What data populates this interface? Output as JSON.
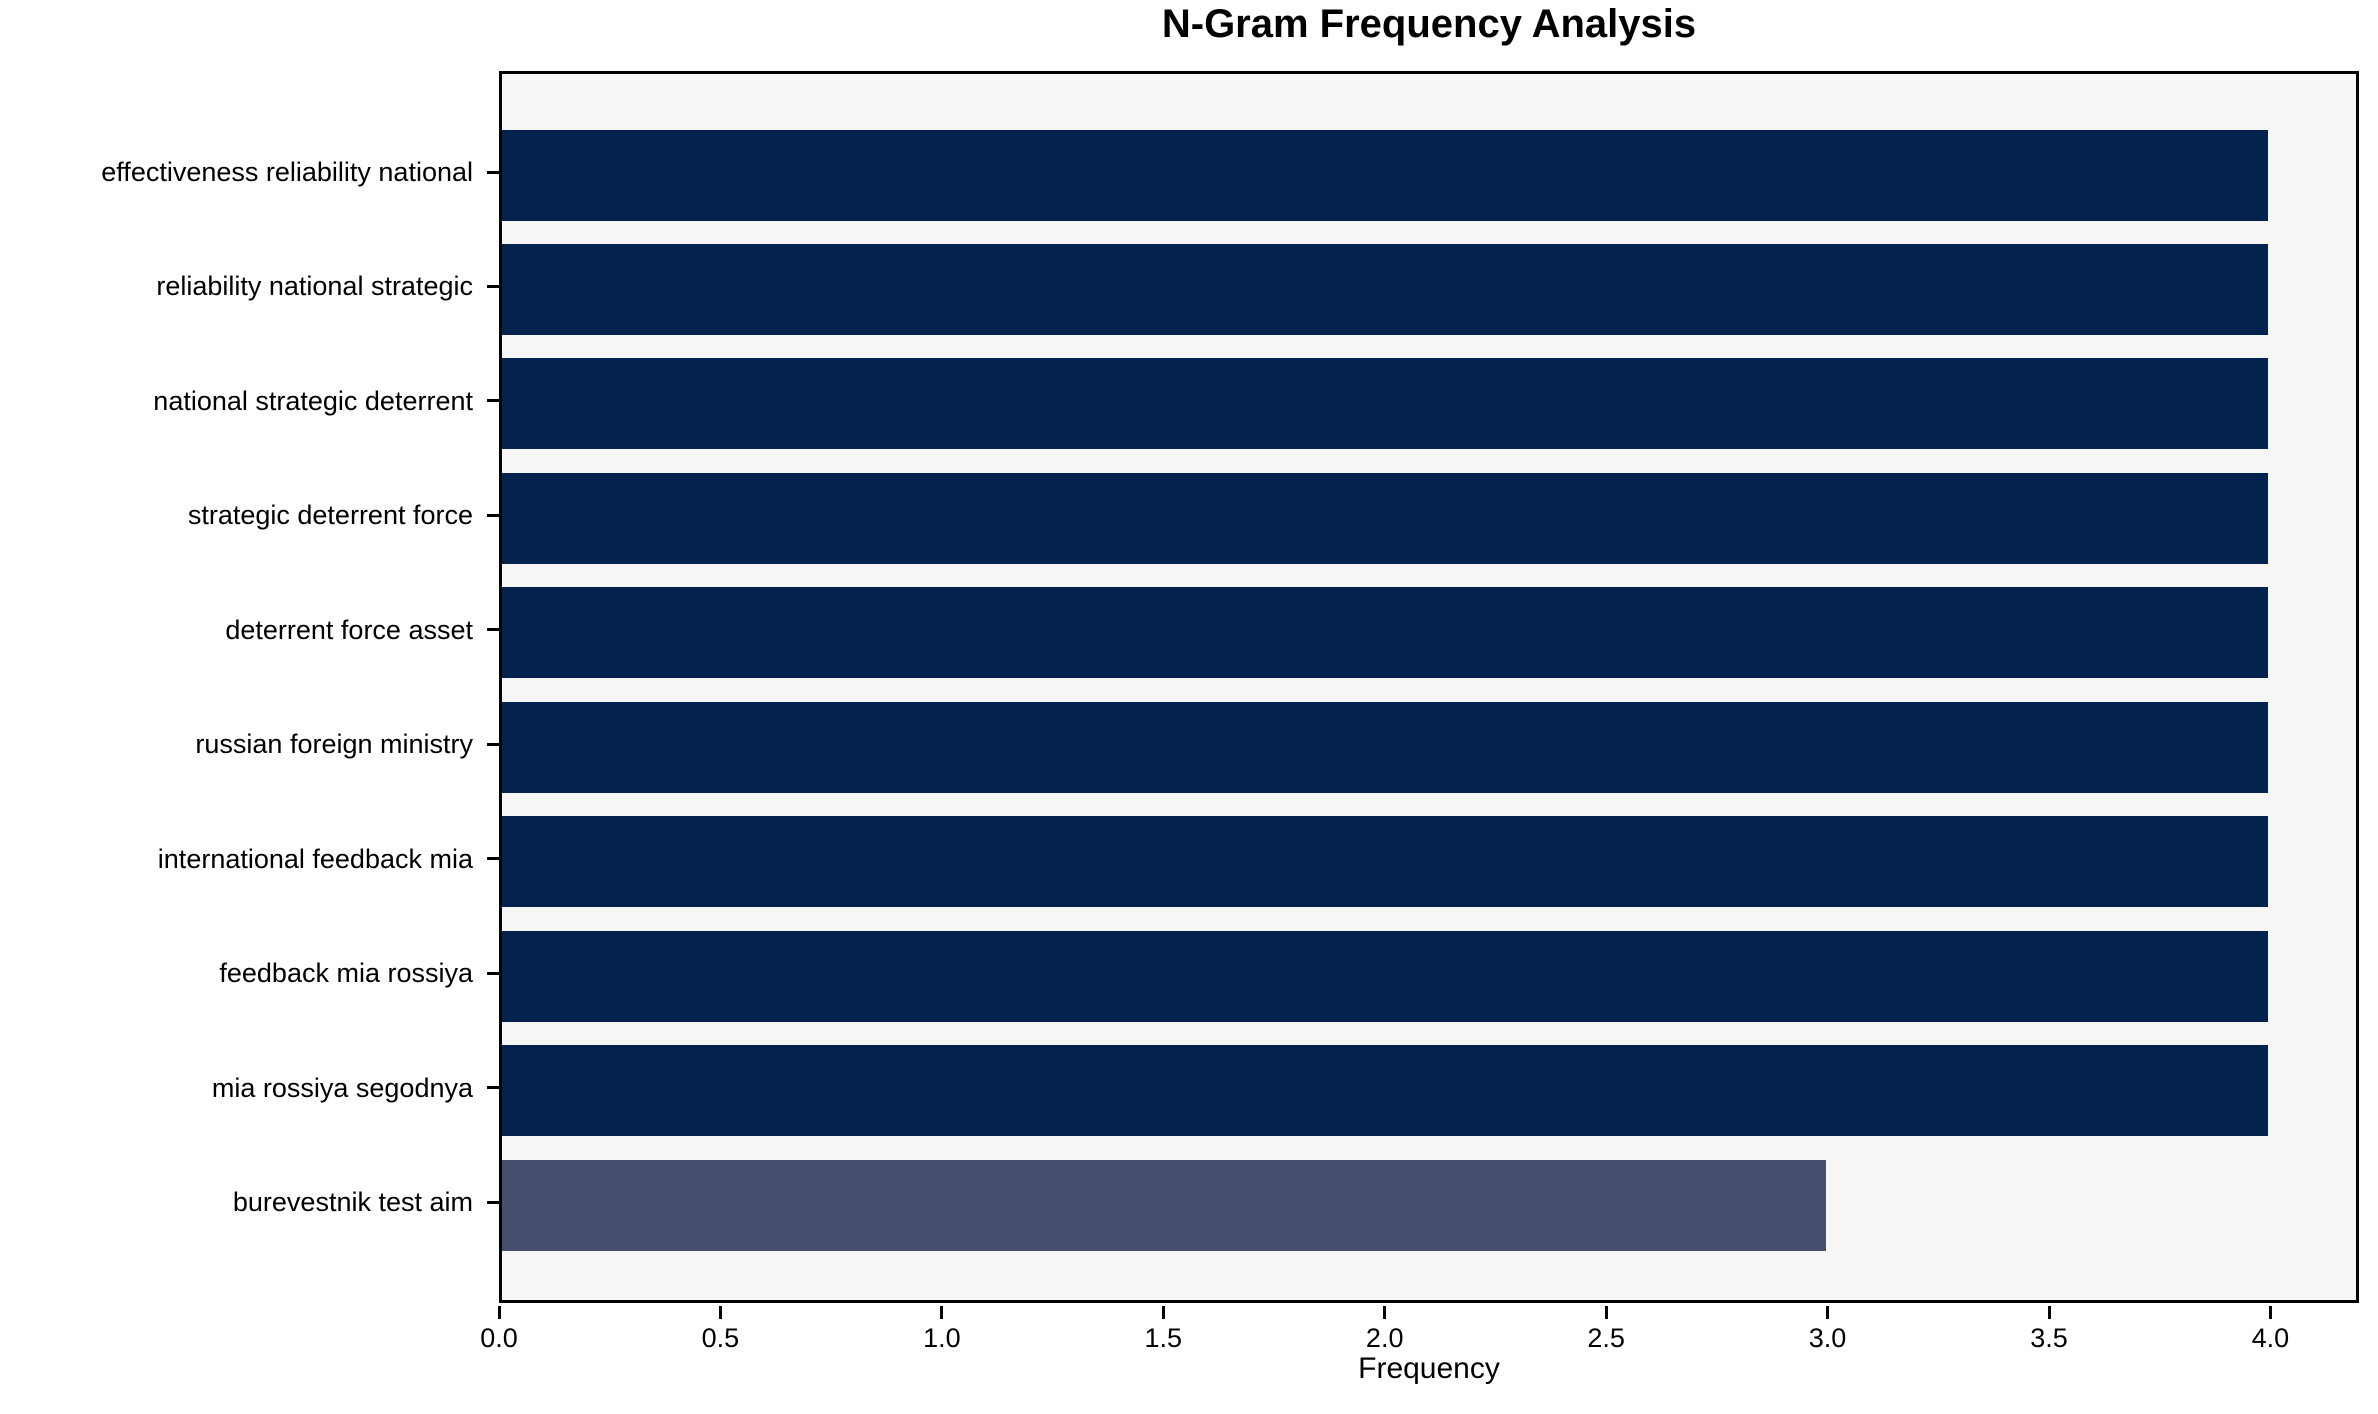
{
  "chart_data": {
    "type": "bar",
    "orientation": "horizontal",
    "title": "N-Gram Frequency Analysis",
    "xlabel": "Frequency",
    "ylabel": "",
    "categories": [
      "effectiveness reliability national",
      "reliability national strategic",
      "national strategic deterrent",
      "strategic deterrent force",
      "deterrent force asset",
      "russian foreign ministry",
      "international feedback mia",
      "feedback mia rossiya",
      "mia rossiya segodnya",
      "burevestnik test aim"
    ],
    "values": [
      4,
      4,
      4,
      4,
      4,
      4,
      4,
      4,
      4,
      3
    ],
    "bar_colors": [
      "#03224c",
      "#03224c",
      "#03224c",
      "#03224c",
      "#03224c",
      "#03224c",
      "#03224c",
      "#03224c",
      "#03224c",
      "#46506e"
    ],
    "xlim": [
      0,
      4.2
    ],
    "xticks": [
      0,
      0.5,
      1,
      1.5,
      2,
      2.5,
      3,
      3.5,
      4
    ],
    "xtick_labels": [
      "0.0",
      "0.5",
      "1.0",
      "1.5",
      "2.0",
      "2.5",
      "3.0",
      "3.5",
      "4.0"
    ],
    "grid": false,
    "legend": null,
    "plot_background": "#f6f6f7",
    "figure_background": "#ffffff",
    "spine_color": "#000000"
  }
}
